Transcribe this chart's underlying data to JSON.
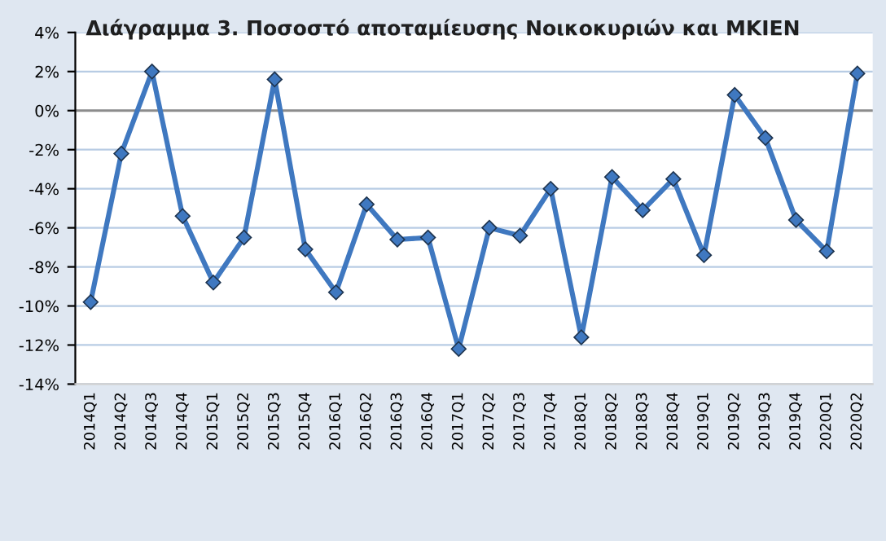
{
  "chart_data": {
    "type": "line",
    "title": "Διάγραμμα 3. Ποσοστό αποταμίευσης Νοικοκυριών και ΜΚΙΕΝ",
    "categories": [
      "2014Q1",
      "2014Q2",
      "2014Q3",
      "2014Q4",
      "2015Q1",
      "2015Q2",
      "2015Q3",
      "2015Q4",
      "2016Q1",
      "2016Q2",
      "2016Q3",
      "2016Q4",
      "2017Q1",
      "2017Q2",
      "2017Q3",
      "2017Q4",
      "2018Q1",
      "2018Q2",
      "2018Q3",
      "2018Q4",
      "2019Q1",
      "2019Q2",
      "2019Q3",
      "2019Q4",
      "2020Q1",
      "2020Q2"
    ],
    "series": [
      {
        "color": "#3f78c0",
        "values": [
          -9.8,
          -2.2,
          2.0,
          -5.4,
          -8.8,
          -6.5,
          1.6,
          -7.1,
          -9.3,
          -4.8,
          -6.6,
          -6.5,
          -12.2,
          -6.0,
          -6.4,
          -4.0,
          -11.6,
          -3.4,
          -5.1,
          -3.5,
          -7.4,
          0.8,
          -1.4,
          -5.6,
          -7.2,
          1.9
        ]
      }
    ],
    "ylim": [
      -14,
      4
    ],
    "yticks": [
      {
        "value": 4,
        "label": "4%"
      },
      {
        "value": 2,
        "label": "2%"
      },
      {
        "value": 0,
        "label": "0%"
      },
      {
        "value": -2,
        "label": "-2%"
      },
      {
        "value": -4,
        "label": "-4%"
      },
      {
        "value": -6,
        "label": "-6%"
      },
      {
        "value": -8,
        "label": "-8%"
      },
      {
        "value": -10,
        "label": "-10%"
      },
      {
        "value": -12,
        "label": "-12%"
      },
      {
        "value": -14,
        "label": "-14%"
      }
    ],
    "grid": "y",
    "marker": "diamond",
    "line_style": "solid",
    "ref_lines": [
      {
        "axis": "y",
        "value": 0,
        "color": "#8c8c8c"
      }
    ]
  }
}
